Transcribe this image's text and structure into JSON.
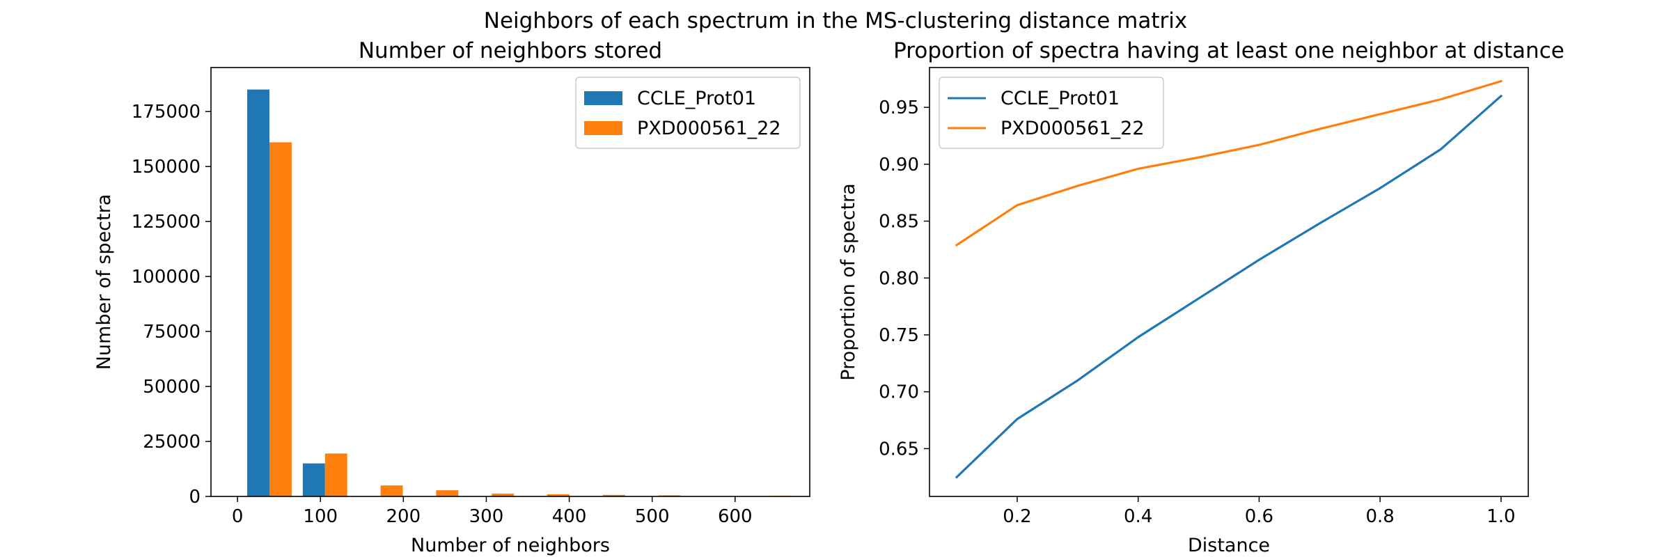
{
  "figure": {
    "suptitle": "Neighbors of each spectrum in the MS-clustering distance matrix"
  },
  "chart_data": [
    {
      "type": "bar",
      "title": "Number of neighbors stored",
      "xlabel": "Number of neighbors",
      "ylabel": "Number of spectra",
      "xlim": [
        -32,
        690
      ],
      "ylim": [
        0,
        195000
      ],
      "xticks": [
        0,
        100,
        200,
        300,
        400,
        500,
        600
      ],
      "yticks": [
        0,
        25000,
        50000,
        75000,
        100000,
        125000,
        150000,
        175000
      ],
      "bin_edges": [
        5,
        72,
        139,
        206,
        273,
        340,
        407,
        474,
        541,
        608,
        675
      ],
      "grid": false,
      "legend_position": "upper right",
      "series": [
        {
          "name": "CCLE_Prot01",
          "color": "#1f77b4",
          "values": [
            185000,
            15000,
            0,
            0,
            0,
            0,
            0,
            0,
            0,
            0
          ]
        },
        {
          "name": "PXD000561_22",
          "color": "#ff7f0e",
          "values": [
            161000,
            19500,
            5000,
            2800,
            1300,
            1000,
            700,
            500,
            0,
            300
          ]
        }
      ]
    },
    {
      "type": "line",
      "title": "Proportion of spectra having at least one neighbor at distance",
      "xlabel": "Distance",
      "ylabel": "Proportion of spectra",
      "xlim": [
        0.055,
        1.045
      ],
      "ylim": [
        0.608,
        0.985
      ],
      "xticks": [
        0.2,
        0.4,
        0.6,
        0.8,
        1.0
      ],
      "xtick_labels": [
        "0.2",
        "0.4",
        "0.6",
        "0.8",
        "1.0"
      ],
      "yticks": [
        0.65,
        0.7,
        0.75,
        0.8,
        0.85,
        0.9,
        0.95
      ],
      "ytick_labels": [
        "0.65",
        "0.70",
        "0.75",
        "0.80",
        "0.85",
        "0.90",
        "0.95"
      ],
      "x": [
        0.1,
        0.2,
        0.3,
        0.4,
        0.5,
        0.6,
        0.7,
        0.8,
        0.9,
        1.0
      ],
      "grid": false,
      "legend_position": "upper left",
      "series": [
        {
          "name": "CCLE_Prot01",
          "color": "#1f77b4",
          "values": [
            0.625,
            0.676,
            0.71,
            0.748,
            0.782,
            0.816,
            0.848,
            0.879,
            0.913,
            0.96
          ]
        },
        {
          "name": "PXD000561_22",
          "color": "#ff7f0e",
          "values": [
            0.829,
            0.864,
            0.881,
            0.896,
            0.906,
            0.917,
            0.931,
            0.944,
            0.957,
            0.973
          ]
        }
      ]
    }
  ]
}
